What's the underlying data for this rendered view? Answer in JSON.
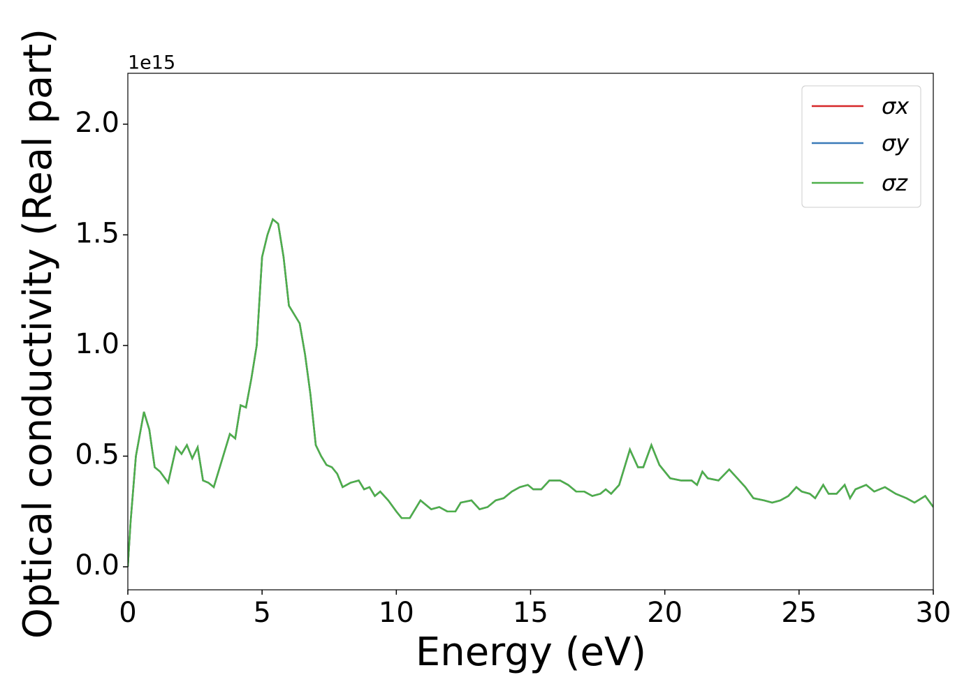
{
  "chart_data": {
    "type": "line",
    "xlabel": "Energy (eV)",
    "ylabel": "Optical conductivity (Real part)",
    "offset_label": "1e15",
    "x": [
      0,
      0.1,
      0.3,
      0.6,
      0.8,
      1.0,
      1.2,
      1.5,
      1.8,
      2.0,
      2.2,
      2.4,
      2.6,
      2.8,
      3.0,
      3.2,
      3.5,
      3.8,
      4.0,
      4.2,
      4.4,
      4.6,
      4.8,
      5.0,
      5.2,
      5.4,
      5.6,
      5.8,
      6.0,
      6.2,
      6.4,
      6.6,
      6.8,
      7.0,
      7.2,
      7.4,
      7.6,
      7.8,
      8.0,
      8.3,
      8.6,
      8.8,
      9.0,
      9.2,
      9.4,
      9.7,
      10.0,
      10.2,
      10.5,
      10.9,
      11.3,
      11.6,
      11.9,
      12.2,
      12.4,
      12.8,
      13.1,
      13.4,
      13.7,
      14.0,
      14.3,
      14.6,
      14.9,
      15.1,
      15.4,
      15.7,
      16.1,
      16.4,
      16.7,
      17.0,
      17.3,
      17.6,
      17.8,
      18.0,
      18.3,
      18.7,
      19.0,
      19.2,
      19.5,
      19.8,
      20.2,
      20.6,
      21.0,
      21.2,
      21.4,
      21.6,
      22.0,
      22.4,
      22.7,
      23.0,
      23.3,
      23.7,
      24.0,
      24.3,
      24.6,
      24.9,
      25.1,
      25.4,
      25.6,
      25.9,
      26.1,
      26.4,
      26.7,
      26.9,
      27.1,
      27.5,
      27.8,
      28.2,
      28.6,
      29.0,
      29.3,
      29.7,
      30.0
    ],
    "series": [
      {
        "name": "σx",
        "color": "#d62728",
        "values": [
          0.0,
          0.2,
          0.5,
          0.7,
          0.62,
          0.45,
          0.43,
          0.38,
          0.54,
          0.51,
          0.55,
          0.49,
          0.54,
          0.39,
          0.38,
          0.36,
          0.48,
          0.6,
          0.58,
          0.73,
          0.72,
          0.85,
          1.0,
          1.4,
          1.5,
          1.57,
          1.55,
          1.4,
          1.18,
          1.14,
          1.1,
          0.96,
          0.78,
          0.55,
          0.5,
          0.46,
          0.45,
          0.42,
          0.36,
          0.38,
          0.39,
          0.35,
          0.36,
          0.32,
          0.34,
          0.3,
          0.25,
          0.22,
          0.22,
          0.3,
          0.26,
          0.27,
          0.25,
          0.25,
          0.29,
          0.3,
          0.26,
          0.27,
          0.3,
          0.31,
          0.34,
          0.36,
          0.37,
          0.35,
          0.35,
          0.39,
          0.39,
          0.37,
          0.34,
          0.34,
          0.32,
          0.33,
          0.35,
          0.33,
          0.37,
          0.53,
          0.45,
          0.45,
          0.55,
          0.46,
          0.4,
          0.39,
          0.39,
          0.37,
          0.43,
          0.4,
          0.39,
          0.44,
          0.4,
          0.36,
          0.31,
          0.3,
          0.29,
          0.3,
          0.32,
          0.36,
          0.34,
          0.33,
          0.31,
          0.37,
          0.33,
          0.33,
          0.37,
          0.31,
          0.35,
          0.37,
          0.34,
          0.36,
          0.33,
          0.31,
          0.29,
          0.32,
          0.27
        ]
      },
      {
        "name": "σy",
        "color": "#3a7ab8",
        "values": [
          0.0,
          0.2,
          0.5,
          0.7,
          0.62,
          0.45,
          0.43,
          0.38,
          0.54,
          0.51,
          0.55,
          0.49,
          0.54,
          0.39,
          0.38,
          0.36,
          0.48,
          0.6,
          0.58,
          0.73,
          0.72,
          0.85,
          1.0,
          1.4,
          1.5,
          1.57,
          1.55,
          1.4,
          1.18,
          1.14,
          1.1,
          0.96,
          0.78,
          0.55,
          0.5,
          0.46,
          0.45,
          0.42,
          0.36,
          0.38,
          0.39,
          0.35,
          0.36,
          0.32,
          0.34,
          0.3,
          0.25,
          0.22,
          0.22,
          0.3,
          0.26,
          0.27,
          0.25,
          0.25,
          0.29,
          0.3,
          0.26,
          0.27,
          0.3,
          0.31,
          0.34,
          0.36,
          0.37,
          0.35,
          0.35,
          0.39,
          0.39,
          0.37,
          0.34,
          0.34,
          0.32,
          0.33,
          0.35,
          0.33,
          0.37,
          0.53,
          0.45,
          0.45,
          0.55,
          0.46,
          0.4,
          0.39,
          0.39,
          0.37,
          0.43,
          0.4,
          0.39,
          0.44,
          0.4,
          0.36,
          0.31,
          0.3,
          0.29,
          0.3,
          0.32,
          0.36,
          0.34,
          0.33,
          0.31,
          0.37,
          0.33,
          0.33,
          0.37,
          0.31,
          0.35,
          0.37,
          0.34,
          0.36,
          0.33,
          0.31,
          0.29,
          0.32,
          0.27
        ]
      },
      {
        "name": "σz",
        "color": "#4daf4a",
        "values": [
          0.0,
          0.2,
          0.5,
          0.7,
          0.62,
          0.45,
          0.43,
          0.38,
          0.54,
          0.51,
          0.55,
          0.49,
          0.54,
          0.39,
          0.38,
          0.36,
          0.48,
          0.6,
          0.58,
          0.73,
          0.72,
          0.85,
          1.0,
          1.4,
          1.5,
          1.57,
          1.55,
          1.4,
          1.18,
          1.14,
          1.1,
          0.96,
          0.78,
          0.55,
          0.5,
          0.46,
          0.45,
          0.42,
          0.36,
          0.38,
          0.39,
          0.35,
          0.36,
          0.32,
          0.34,
          0.3,
          0.25,
          0.22,
          0.22,
          0.3,
          0.26,
          0.27,
          0.25,
          0.25,
          0.29,
          0.3,
          0.26,
          0.27,
          0.3,
          0.31,
          0.34,
          0.36,
          0.37,
          0.35,
          0.35,
          0.39,
          0.39,
          0.37,
          0.34,
          0.34,
          0.32,
          0.33,
          0.35,
          0.33,
          0.37,
          0.53,
          0.45,
          0.45,
          0.55,
          0.46,
          0.4,
          0.39,
          0.39,
          0.37,
          0.43,
          0.4,
          0.39,
          0.44,
          0.4,
          0.36,
          0.31,
          0.3,
          0.29,
          0.3,
          0.32,
          0.36,
          0.34,
          0.33,
          0.31,
          0.37,
          0.33,
          0.33,
          0.37,
          0.31,
          0.35,
          0.37,
          0.34,
          0.36,
          0.33,
          0.31,
          0.29,
          0.32,
          0.27
        ]
      }
    ],
    "xlim": [
      0,
      30
    ],
    "xticks": [
      0,
      5,
      10,
      15,
      20,
      25,
      30
    ],
    "ylim": [
      -0.104,
      2.23
    ],
    "yticks": [
      {
        "value": 0,
        "label": "0.0"
      },
      0.5,
      {
        "value": 1,
        "label": "1.0"
      },
      1.5,
      {
        "value": 2,
        "label": "2.0"
      }
    ],
    "grid": false,
    "legend": "upper right"
  }
}
